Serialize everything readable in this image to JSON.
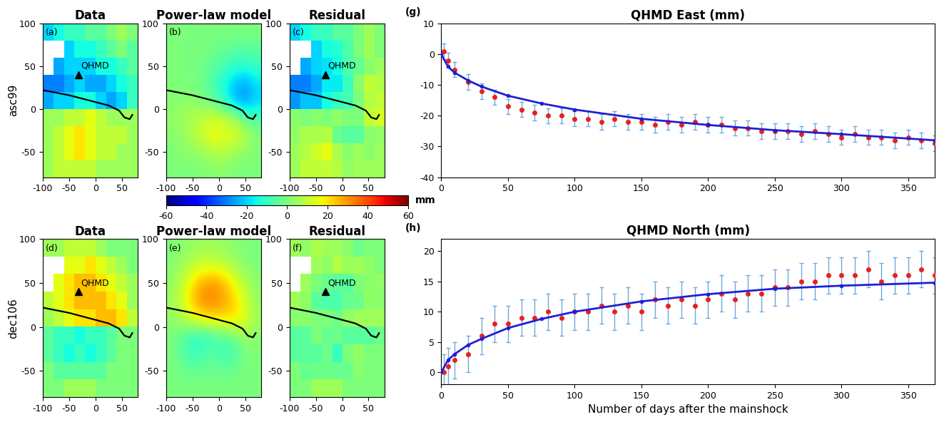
{
  "chart_data": [
    {
      "type": "heatmap",
      "panel": "(a)",
      "title": "Data",
      "row_label": "asc99",
      "xlim": [
        -100,
        80
      ],
      "ylim": [
        -80,
        100
      ],
      "xticks": [
        -100,
        -50,
        0,
        50
      ],
      "yticks": [
        -50,
        0,
        50,
        100
      ],
      "cells": [
        [
          -20,
          -15,
          -10,
          -10,
          -5,
          -5,
          0,
          5,
          0
        ],
        [
          null,
          null,
          -20,
          -15,
          -15,
          -10,
          -5,
          0,
          -5
        ],
        [
          null,
          -25,
          -20,
          -20,
          -20,
          -15,
          -15,
          -10,
          -5
        ],
        [
          -30,
          -30,
          -25,
          -20,
          -25,
          -25,
          -20,
          -15,
          -10
        ],
        [
          -25,
          -20,
          -20,
          -15,
          -15,
          -20,
          -25,
          -20,
          -10
        ],
        [
          5,
          5,
          10,
          10,
          15,
          10,
          5,
          5,
          5
        ],
        [
          5,
          10,
          15,
          20,
          15,
          10,
          10,
          10,
          5
        ],
        [
          5,
          10,
          15,
          20,
          15,
          10,
          10,
          5,
          5
        ],
        [
          5,
          10,
          10,
          10,
          10,
          5,
          5,
          5,
          5
        ]
      ]
    },
    {
      "type": "heatmap",
      "panel": "(b)",
      "title": "Power-law model",
      "xlim": [
        -100,
        80
      ],
      "ylim": [
        -80,
        100
      ],
      "xticks": [
        -100,
        -50,
        0,
        50
      ],
      "yticks": [
        -50,
        0,
        50,
        100
      ],
      "cells": [
        [
          0,
          0,
          0,
          0,
          0,
          0,
          0,
          0,
          0
        ],
        [
          0,
          0,
          0,
          0,
          -2,
          -3,
          -5,
          -5,
          -5
        ],
        [
          0,
          0,
          0,
          -2,
          -5,
          -8,
          -12,
          -12,
          -10
        ],
        [
          0,
          0,
          0,
          -3,
          -8,
          -15,
          -22,
          -25,
          -18
        ],
        [
          2,
          2,
          2,
          0,
          -5,
          -12,
          -25,
          -28,
          -20
        ],
        [
          3,
          5,
          8,
          10,
          12,
          10,
          5,
          -5,
          -8
        ],
        [
          2,
          3,
          8,
          12,
          18,
          15,
          15,
          8,
          2
        ],
        [
          0,
          2,
          3,
          5,
          8,
          8,
          5,
          3,
          0
        ],
        [
          0,
          0,
          0,
          0,
          2,
          2,
          0,
          0,
          0
        ]
      ]
    },
    {
      "type": "heatmap",
      "panel": "(c)",
      "title": "Residual",
      "xlim": [
        -100,
        80
      ],
      "ylim": [
        -80,
        100
      ],
      "xticks": [
        -100,
        -50,
        0,
        50
      ],
      "yticks": [
        -50,
        0,
        50,
        100
      ],
      "cells": [
        [
          -20,
          -15,
          -10,
          -10,
          -5,
          -5,
          0,
          5,
          0
        ],
        [
          null,
          null,
          -20,
          -15,
          -13,
          -7,
          0,
          5,
          0
        ],
        [
          null,
          -25,
          -20,
          -18,
          -15,
          -7,
          -3,
          2,
          5
        ],
        [
          -30,
          -30,
          -25,
          -17,
          -17,
          -10,
          2,
          10,
          8
        ],
        [
          -27,
          -22,
          -22,
          -15,
          -10,
          -8,
          0,
          8,
          10
        ],
        [
          2,
          0,
          2,
          0,
          3,
          0,
          0,
          10,
          13
        ],
        [
          3,
          7,
          7,
          8,
          -3,
          -5,
          -5,
          2,
          3
        ],
        [
          5,
          8,
          12,
          15,
          7,
          2,
          5,
          2,
          5
        ],
        [
          5,
          10,
          10,
          10,
          8,
          3,
          5,
          5,
          5
        ]
      ]
    },
    {
      "type": "heatmap",
      "panel": "(d)",
      "title": "Data",
      "row_label": "dec106",
      "xlim": [
        -100,
        80
      ],
      "ylim": [
        -80,
        100
      ],
      "xticks": [
        -100,
        -50,
        0,
        50
      ],
      "yticks": [
        -50,
        0,
        50,
        100
      ],
      "cells": [
        [
          5,
          5,
          10,
          10,
          10,
          5,
          0,
          0,
          0
        ],
        [
          null,
          null,
          15,
          15,
          20,
          15,
          10,
          5,
          0
        ],
        [
          null,
          15,
          20,
          25,
          25,
          20,
          15,
          10,
          5
        ],
        [
          10,
          15,
          20,
          25,
          25,
          25,
          20,
          15,
          5
        ],
        [
          5,
          10,
          15,
          20,
          20,
          25,
          25,
          20,
          10
        ],
        [
          -5,
          -10,
          -10,
          -15,
          -10,
          -10,
          -5,
          0,
          0
        ],
        [
          -5,
          -10,
          -15,
          -10,
          -15,
          -10,
          -5,
          0,
          0
        ],
        [
          0,
          -5,
          -5,
          -5,
          -5,
          -5,
          0,
          0,
          0
        ],
        [
          0,
          0,
          5,
          5,
          5,
          0,
          0,
          0,
          0
        ]
      ]
    },
    {
      "type": "heatmap",
      "panel": "(e)",
      "title": "Power-law model",
      "xlim": [
        -100,
        80
      ],
      "ylim": [
        -80,
        100
      ],
      "xticks": [
        -100,
        -50,
        0,
        50
      ],
      "yticks": [
        -50,
        0,
        50,
        100
      ],
      "cells": [
        [
          0,
          2,
          3,
          5,
          5,
          3,
          2,
          0,
          0
        ],
        [
          2,
          5,
          10,
          12,
          12,
          10,
          5,
          2,
          0
        ],
        [
          3,
          10,
          20,
          28,
          30,
          25,
          15,
          8,
          2
        ],
        [
          5,
          12,
          25,
          32,
          32,
          28,
          22,
          12,
          3
        ],
        [
          3,
          8,
          15,
          20,
          22,
          22,
          20,
          15,
          5
        ],
        [
          0,
          -5,
          -10,
          -12,
          -8,
          -5,
          0,
          5,
          2
        ],
        [
          0,
          -5,
          -10,
          -8,
          -5,
          -10,
          -8,
          0,
          0
        ],
        [
          0,
          -2,
          -3,
          -3,
          -2,
          -3,
          -2,
          0,
          0
        ],
        [
          0,
          0,
          0,
          0,
          0,
          0,
          0,
          0,
          0
        ]
      ]
    },
    {
      "type": "heatmap",
      "panel": "(f)",
      "title": "Residual",
      "xlim": [
        -100,
        80
      ],
      "ylim": [
        -80,
        100
      ],
      "xticks": [
        -100,
        -50,
        0,
        50
      ],
      "yticks": [
        -50,
        0,
        50,
        100
      ],
      "cells": [
        [
          5,
          3,
          7,
          5,
          5,
          2,
          -2,
          0,
          0
        ],
        [
          null,
          null,
          5,
          3,
          8,
          5,
          5,
          3,
          0
        ],
        [
          null,
          5,
          0,
          -3,
          -5,
          -5,
          0,
          2,
          3
        ],
        [
          5,
          3,
          -5,
          -7,
          -7,
          -3,
          -2,
          3,
          2
        ],
        [
          2,
          2,
          0,
          0,
          -2,
          3,
          5,
          5,
          5
        ],
        [
          -5,
          -5,
          0,
          -3,
          -2,
          -5,
          -5,
          -5,
          -2
        ],
        [
          -5,
          -5,
          -5,
          -2,
          -10,
          0,
          3,
          0,
          0
        ],
        [
          0,
          -3,
          -2,
          -2,
          -3,
          -2,
          2,
          0,
          0
        ],
        [
          0,
          0,
          5,
          5,
          5,
          0,
          0,
          0,
          0
        ]
      ]
    },
    {
      "type": "scatter",
      "panel": "(g)",
      "title": "QHMD East (mm)",
      "xlim": [
        0,
        370
      ],
      "ylim": [
        -40,
        10
      ],
      "xticks": [
        0,
        50,
        100,
        150,
        200,
        250,
        300,
        350
      ],
      "yticks": [
        -40,
        -30,
        -20,
        -10,
        0,
        10
      ],
      "series": [
        {
          "color": "#e8211b",
          "error_color": "#6fa8dc",
          "marker": "o",
          "line_style": "none",
          "x": [
            2,
            5,
            10,
            20,
            30,
            40,
            50,
            60,
            70,
            80,
            90,
            100,
            110,
            120,
            130,
            140,
            150,
            160,
            170,
            180,
            190,
            200,
            210,
            220,
            230,
            240,
            250,
            260,
            270,
            280,
            290,
            300,
            310,
            320,
            330,
            340,
            350,
            360,
            370
          ],
          "values": [
            1,
            -2,
            -5,
            -9,
            -12,
            -14,
            -17,
            -18,
            -19,
            -20,
            -20,
            -21,
            -21,
            -22,
            -21,
            -22,
            -22,
            -23,
            -22,
            -23,
            -22,
            -23,
            -23,
            -24,
            -24,
            -25,
            -25,
            -25,
            -26,
            -25,
            -26,
            -27,
            -26,
            -27,
            -27,
            -28,
            -27,
            -28,
            -29
          ],
          "errors": [
            2.5,
            2.5,
            2.5,
            2.5,
            2.5,
            2.5,
            2.5,
            2.5,
            2.5,
            2.5,
            2.5,
            2.5,
            2.5,
            2.5,
            2.5,
            2.5,
            2.5,
            2.5,
            2.5,
            2.5,
            2.5,
            2.5,
            2.5,
            2.5,
            2.5,
            2.5,
            2.5,
            2.5,
            2.5,
            2.5,
            2.5,
            2.5,
            2.5,
            2.5,
            2.5,
            2.5,
            2.5,
            2.5,
            2.5
          ]
        },
        {
          "type": "line",
          "color": "#1f1fd6",
          "marker": "o",
          "line_style": "solid",
          "x": [
            0,
            5,
            10,
            20,
            30,
            50,
            75,
            100,
            150,
            200,
            250,
            300,
            370
          ],
          "values": [
            0,
            -4,
            -6,
            -8.5,
            -10.5,
            -13.5,
            -16,
            -18,
            -21,
            -23,
            -24.7,
            -26,
            -28
          ]
        }
      ]
    },
    {
      "type": "scatter",
      "panel": "(h)",
      "title": "QHMD North (mm)",
      "x_label": "Number of days after the mainshock",
      "xlim": [
        0,
        370
      ],
      "ylim": [
        -2,
        22
      ],
      "xticks": [
        0,
        50,
        100,
        150,
        200,
        250,
        300,
        350
      ],
      "yticks": [
        0,
        5,
        10,
        15,
        20
      ],
      "series": [
        {
          "color": "#e8211b",
          "error_color": "#6fa8dc",
          "marker": "o",
          "line_style": "none",
          "x": [
            2,
            5,
            10,
            20,
            30,
            40,
            50,
            60,
            70,
            80,
            90,
            100,
            110,
            120,
            130,
            140,
            150,
            160,
            170,
            180,
            190,
            200,
            210,
            220,
            230,
            240,
            250,
            260,
            270,
            280,
            290,
            300,
            310,
            320,
            330,
            340,
            350,
            360,
            370
          ],
          "values": [
            0,
            1,
            2,
            3,
            6,
            8,
            8,
            9,
            9,
            10,
            9,
            10,
            10,
            11,
            10,
            11,
            10,
            12,
            11,
            12,
            11,
            12,
            13,
            12,
            13,
            13,
            14,
            14,
            15,
            15,
            16,
            16,
            16,
            17,
            15,
            16,
            16,
            17,
            16
          ],
          "errors": [
            3,
            3,
            3,
            3,
            3,
            3,
            3,
            3,
            3,
            3,
            3,
            3,
            3,
            3,
            3,
            3,
            3,
            3,
            3,
            3,
            3,
            3,
            3,
            3,
            3,
            3,
            3,
            3,
            3,
            3,
            3,
            3,
            3,
            3,
            3,
            3,
            3,
            3,
            3
          ]
        },
        {
          "type": "line",
          "color": "#1f1fd6",
          "marker": "o",
          "line_style": "solid",
          "x": [
            0,
            5,
            10,
            20,
            30,
            50,
            75,
            100,
            150,
            200,
            250,
            300,
            370
          ],
          "values": [
            0,
            2,
            3,
            4.5,
            5.5,
            7.3,
            8.8,
            10,
            11.7,
            12.9,
            13.8,
            14.3,
            14.8
          ]
        }
      ]
    }
  ],
  "colorbar": {
    "label": "mm",
    "range": [
      -60,
      60
    ],
    "ticks": [
      -60,
      -40,
      -20,
      0,
      20,
      40,
      60
    ]
  },
  "fault": {
    "x": [
      -100,
      -75,
      -50,
      -25,
      0,
      25,
      45,
      55,
      65,
      70
    ],
    "y": [
      22,
      19,
      16,
      12,
      8,
      4,
      -2,
      -10,
      -12,
      -7
    ],
    "color": "black"
  },
  "station": {
    "name": "QHMD",
    "x": -32,
    "y": 40,
    "color": "black",
    "marker": "^"
  }
}
